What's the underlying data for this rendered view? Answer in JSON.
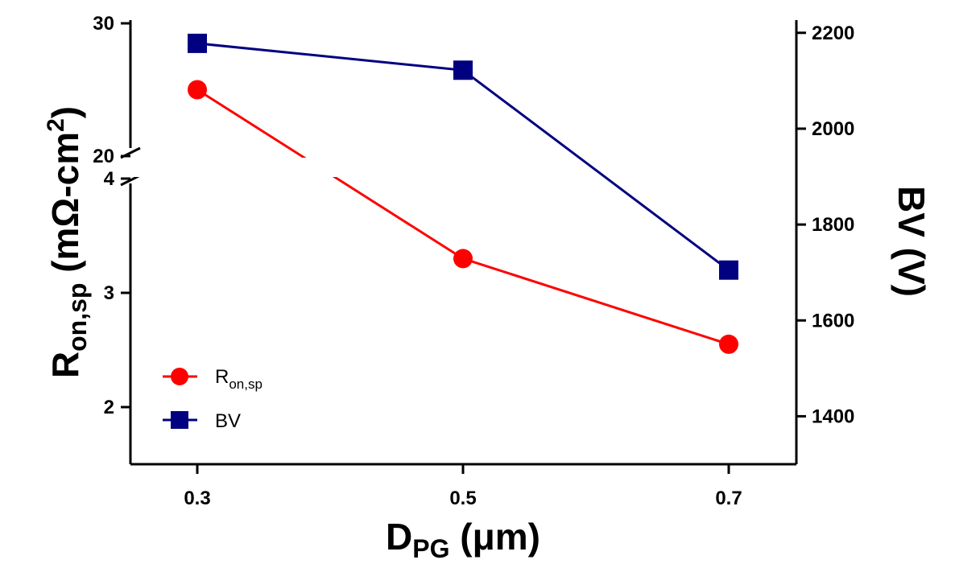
{
  "chart_data": {
    "type": "line",
    "x": [
      0.3,
      0.5,
      0.7
    ],
    "x_tick_labels": [
      "0.3",
      "0.5",
      "0.7"
    ],
    "xlabel": {
      "main": "D",
      "sub": "PG",
      "rest": " (μm)"
    },
    "ylabel_left": {
      "main": "R",
      "sub": "on,sp",
      "rest": " (mΩ-cm",
      "sup": "2",
      "close": ")"
    },
    "ylabel_right": "BV (V)",
    "left_axis": {
      "broken": true,
      "lower_segment": {
        "range": [
          1.5,
          4
        ],
        "ticks": [
          2,
          3,
          4
        ],
        "tick_labels": [
          "2",
          "3",
          "4"
        ]
      },
      "upper_segment": {
        "range": [
          20,
          30
        ],
        "ticks": [
          20,
          30
        ],
        "tick_labels": [
          "20",
          "30"
        ]
      }
    },
    "right_axis": {
      "range": [
        1300,
        2250
      ],
      "ticks": [
        1400,
        1600,
        1800,
        2000,
        2200
      ],
      "tick_labels": [
        "1400",
        "1600",
        "1800",
        "2000",
        "2200"
      ]
    },
    "series": [
      {
        "name": "R",
        "name_sub": "on,sp",
        "axis": "left",
        "values": [
          25.0,
          3.3,
          2.55
        ],
        "color": "#ff0000",
        "marker": "circle"
      },
      {
        "name": "BV",
        "axis": "right",
        "values": [
          2178,
          2122,
          1705
        ],
        "color": "#000080",
        "marker": "square"
      }
    ],
    "legend": "bottom-left",
    "grid": false
  }
}
